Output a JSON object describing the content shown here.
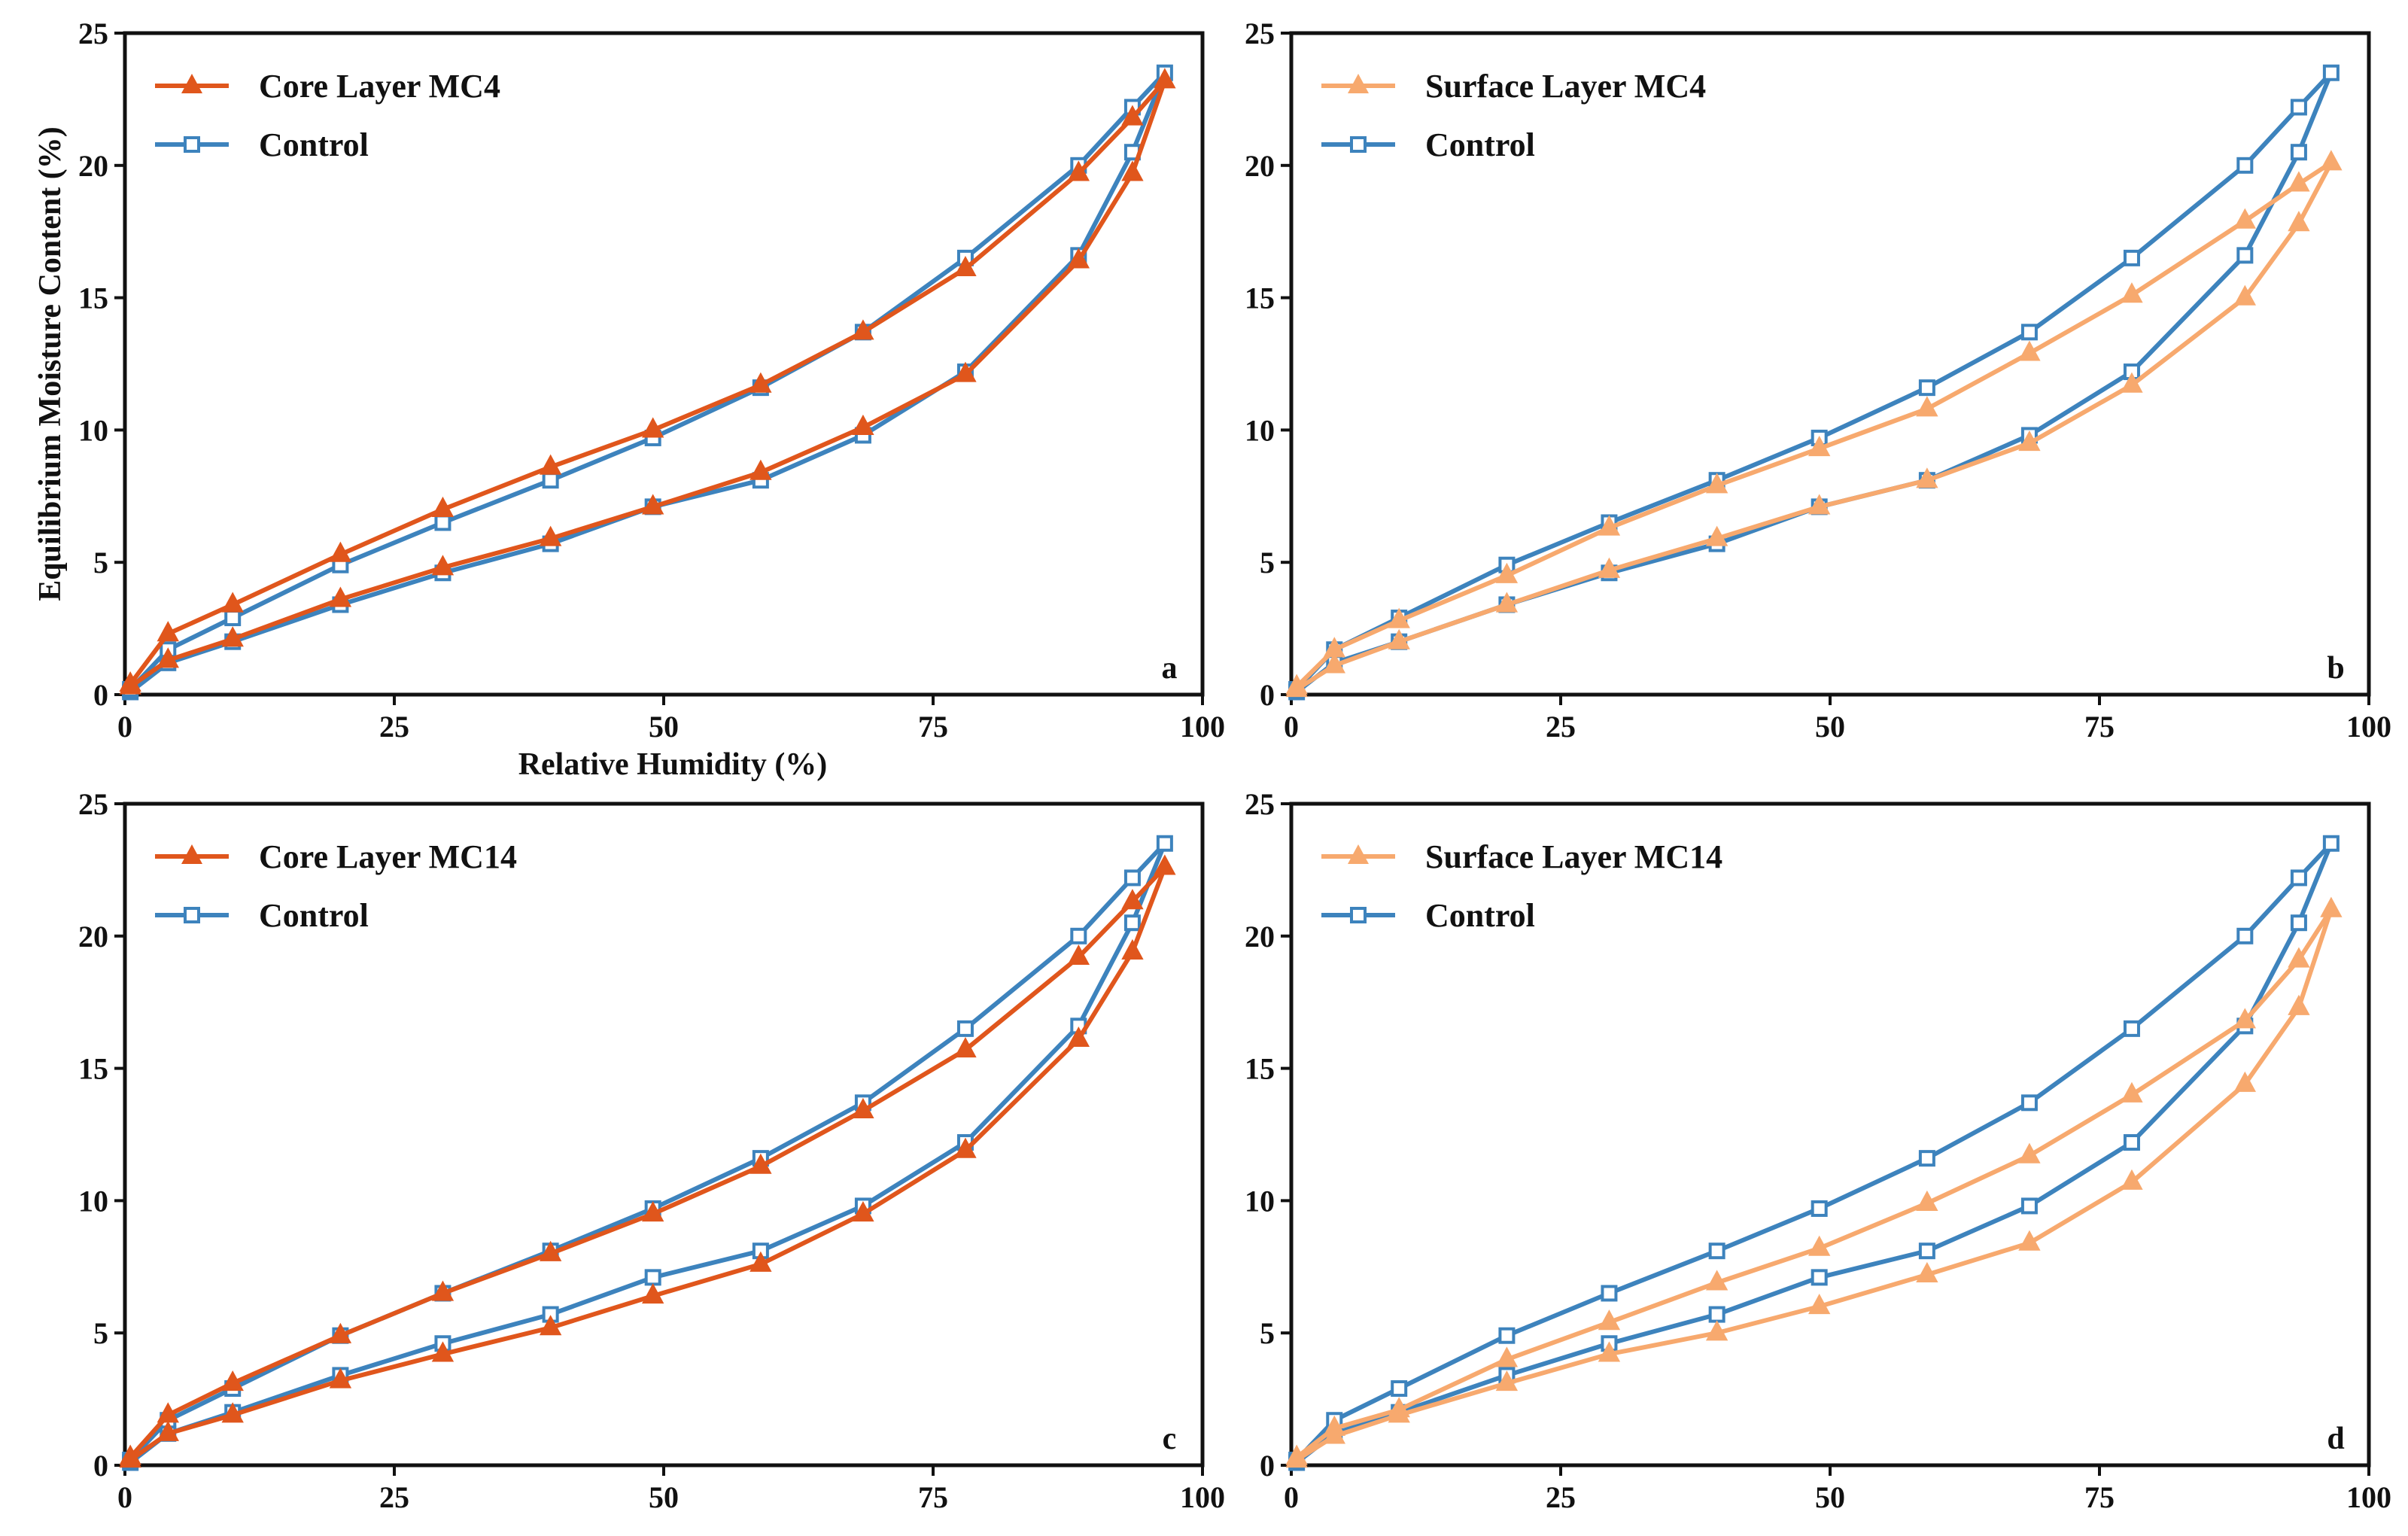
{
  "chart_data": [
    {
      "type": "line",
      "panel_letter": "a",
      "xlabel": "Relative Humidity (%)",
      "ylabel": "Equilibrium Moisture Content (%)",
      "xlim": [
        0,
        100
      ],
      "ylim": [
        0,
        25
      ],
      "xticks": [
        0,
        25,
        50,
        75,
        100
      ],
      "yticks": [
        0,
        5,
        10,
        15,
        20,
        25
      ],
      "legend_position": "top-left",
      "series": [
        {
          "name": "Core Layer MC4",
          "style": "treatment",
          "marker": "triangle",
          "color": "#e0561c",
          "x": [
            0.5,
            4,
            10,
            20,
            29.5,
            39.5,
            49,
            59,
            68.5,
            78,
            88.5,
            93.5,
            96.5,
            93.5,
            88.5,
            78,
            68.5,
            59,
            49,
            39.5,
            29.5,
            20,
            10,
            4,
            0.5
          ],
          "y": [
            0.3,
            1.3,
            2.1,
            3.6,
            4.8,
            5.9,
            7.1,
            8.4,
            10.1,
            12.1,
            16.4,
            19.7,
            23.2,
            21.8,
            19.7,
            16.1,
            13.7,
            11.7,
            10.0,
            8.6,
            7.0,
            5.3,
            3.4,
            2.3,
            0.4
          ]
        },
        {
          "name": "Control",
          "style": "control",
          "marker": "square",
          "color": "#3d83bd",
          "x": [
            0.5,
            4,
            10,
            20,
            29.5,
            39.5,
            49,
            59,
            68.5,
            78,
            88.5,
            93.5,
            96.5,
            93.5,
            88.5,
            78,
            68.5,
            59,
            49,
            39.5,
            29.5,
            20,
            10,
            4,
            0.5
          ],
          "y": [
            0.1,
            1.2,
            2.0,
            3.4,
            4.6,
            5.7,
            7.1,
            8.1,
            9.8,
            12.2,
            16.6,
            20.5,
            23.5,
            22.2,
            20.0,
            16.5,
            13.7,
            11.6,
            9.7,
            8.1,
            6.5,
            4.9,
            2.9,
            1.7,
            0.2
          ]
        }
      ]
    },
    {
      "type": "line",
      "panel_letter": "b",
      "xlabel": "",
      "ylabel": "",
      "xlim": [
        0,
        100
      ],
      "ylim": [
        0,
        25
      ],
      "xticks": [
        0,
        25,
        50,
        75,
        100
      ],
      "yticks": [
        0,
        5,
        10,
        15,
        20,
        25
      ],
      "legend_position": "top-left",
      "series": [
        {
          "name": "Surface Layer MC4",
          "style": "treatment",
          "marker": "triangle",
          "color": "#f7a96e",
          "x": [
            0.5,
            4,
            10,
            20,
            29.5,
            39.5,
            49,
            59,
            68.5,
            78,
            88.5,
            93.5,
            96.5,
            93.5,
            88.5,
            78,
            68.5,
            59,
            49,
            39.5,
            29.5,
            20,
            10,
            4,
            0.5
          ],
          "y": [
            0.2,
            1.1,
            2.0,
            3.4,
            4.7,
            5.9,
            7.1,
            8.1,
            9.5,
            11.7,
            15.0,
            17.8,
            20.1,
            19.3,
            17.9,
            15.1,
            12.9,
            10.8,
            9.3,
            7.9,
            6.3,
            4.5,
            2.8,
            1.7,
            0.3
          ]
        },
        {
          "name": "Control",
          "style": "control",
          "marker": "square",
          "color": "#3d83bd",
          "x": [
            0.5,
            4,
            10,
            20,
            29.5,
            39.5,
            49,
            59,
            68.5,
            78,
            88.5,
            93.5,
            96.5,
            93.5,
            88.5,
            78,
            68.5,
            59,
            49,
            39.5,
            29.5,
            20,
            10,
            4,
            0.5
          ],
          "y": [
            0.1,
            1.2,
            2.0,
            3.4,
            4.6,
            5.7,
            7.1,
            8.1,
            9.8,
            12.2,
            16.6,
            20.5,
            23.5,
            22.2,
            20.0,
            16.5,
            13.7,
            11.6,
            9.7,
            8.1,
            6.5,
            4.9,
            2.9,
            1.7,
            0.2
          ]
        }
      ]
    },
    {
      "type": "line",
      "panel_letter": "c",
      "xlabel": "",
      "ylabel": "",
      "xlim": [
        0,
        100
      ],
      "ylim": [
        0,
        25
      ],
      "xticks": [
        0,
        25,
        50,
        75,
        100
      ],
      "yticks": [
        0,
        5,
        10,
        15,
        20,
        25
      ],
      "legend_position": "top-left",
      "series": [
        {
          "name": "Core Layer MC14",
          "style": "treatment",
          "marker": "triangle",
          "color": "#e0561c",
          "x": [
            0.5,
            4,
            10,
            20,
            29.5,
            39.5,
            49,
            59,
            68.5,
            78,
            88.5,
            93.5,
            96.5,
            93.5,
            88.5,
            78,
            68.5,
            59,
            49,
            39.5,
            29.5,
            20,
            10,
            4,
            0.5
          ],
          "y": [
            0.2,
            1.2,
            1.9,
            3.2,
            4.2,
            5.2,
            6.4,
            7.6,
            9.5,
            11.9,
            16.1,
            19.4,
            22.6,
            21.3,
            19.2,
            15.7,
            13.4,
            11.3,
            9.5,
            8.0,
            6.5,
            4.9,
            3.1,
            1.9,
            0.3
          ]
        },
        {
          "name": "Control",
          "style": "control",
          "marker": "square",
          "color": "#3d83bd",
          "x": [
            0.5,
            4,
            10,
            20,
            29.5,
            39.5,
            49,
            59,
            68.5,
            78,
            88.5,
            93.5,
            96.5,
            93.5,
            88.5,
            78,
            68.5,
            59,
            49,
            39.5,
            29.5,
            20,
            10,
            4,
            0.5
          ],
          "y": [
            0.1,
            1.2,
            2.0,
            3.4,
            4.6,
            5.7,
            7.1,
            8.1,
            9.8,
            12.2,
            16.6,
            20.5,
            23.5,
            22.2,
            20.0,
            16.5,
            13.7,
            11.6,
            9.7,
            8.1,
            6.5,
            4.9,
            2.9,
            1.7,
            0.2
          ]
        }
      ]
    },
    {
      "type": "line",
      "panel_letter": "d",
      "xlabel": "",
      "ylabel": "",
      "xlim": [
        0,
        100
      ],
      "ylim": [
        0,
        25
      ],
      "xticks": [
        0,
        25,
        50,
        75,
        100
      ],
      "yticks": [
        0,
        5,
        10,
        15,
        20,
        25
      ],
      "legend_position": "top-left",
      "series": [
        {
          "name": "Surface Layer MC14",
          "style": "treatment",
          "marker": "triangle",
          "color": "#f7a96e",
          "x": [
            0.5,
            4,
            10,
            20,
            29.5,
            39.5,
            49,
            59,
            68.5,
            78,
            88.5,
            93.5,
            96.5,
            93.5,
            88.5,
            78,
            68.5,
            59,
            49,
            39.5,
            29.5,
            20,
            10,
            4,
            0.5
          ],
          "y": [
            0.2,
            1.1,
            1.9,
            3.1,
            4.2,
            5.0,
            6.0,
            7.2,
            8.4,
            10.7,
            14.4,
            17.3,
            21.0,
            19.1,
            16.8,
            14.0,
            11.7,
            9.9,
            8.2,
            6.9,
            5.4,
            4.0,
            2.1,
            1.4,
            0.3
          ]
        },
        {
          "name": "Control",
          "style": "control",
          "marker": "square",
          "color": "#3d83bd",
          "x": [
            0.5,
            4,
            10,
            20,
            29.5,
            39.5,
            49,
            59,
            68.5,
            78,
            88.5,
            93.5,
            96.5,
            93.5,
            88.5,
            78,
            68.5,
            59,
            49,
            39.5,
            29.5,
            20,
            10,
            4,
            0.5
          ],
          "y": [
            0.1,
            1.2,
            2.0,
            3.4,
            4.6,
            5.7,
            7.1,
            8.1,
            9.8,
            12.2,
            16.6,
            20.5,
            23.5,
            22.2,
            20.0,
            16.5,
            13.7,
            11.6,
            9.7,
            8.1,
            6.5,
            4.9,
            2.9,
            1.7,
            0.2
          ]
        }
      ]
    }
  ]
}
